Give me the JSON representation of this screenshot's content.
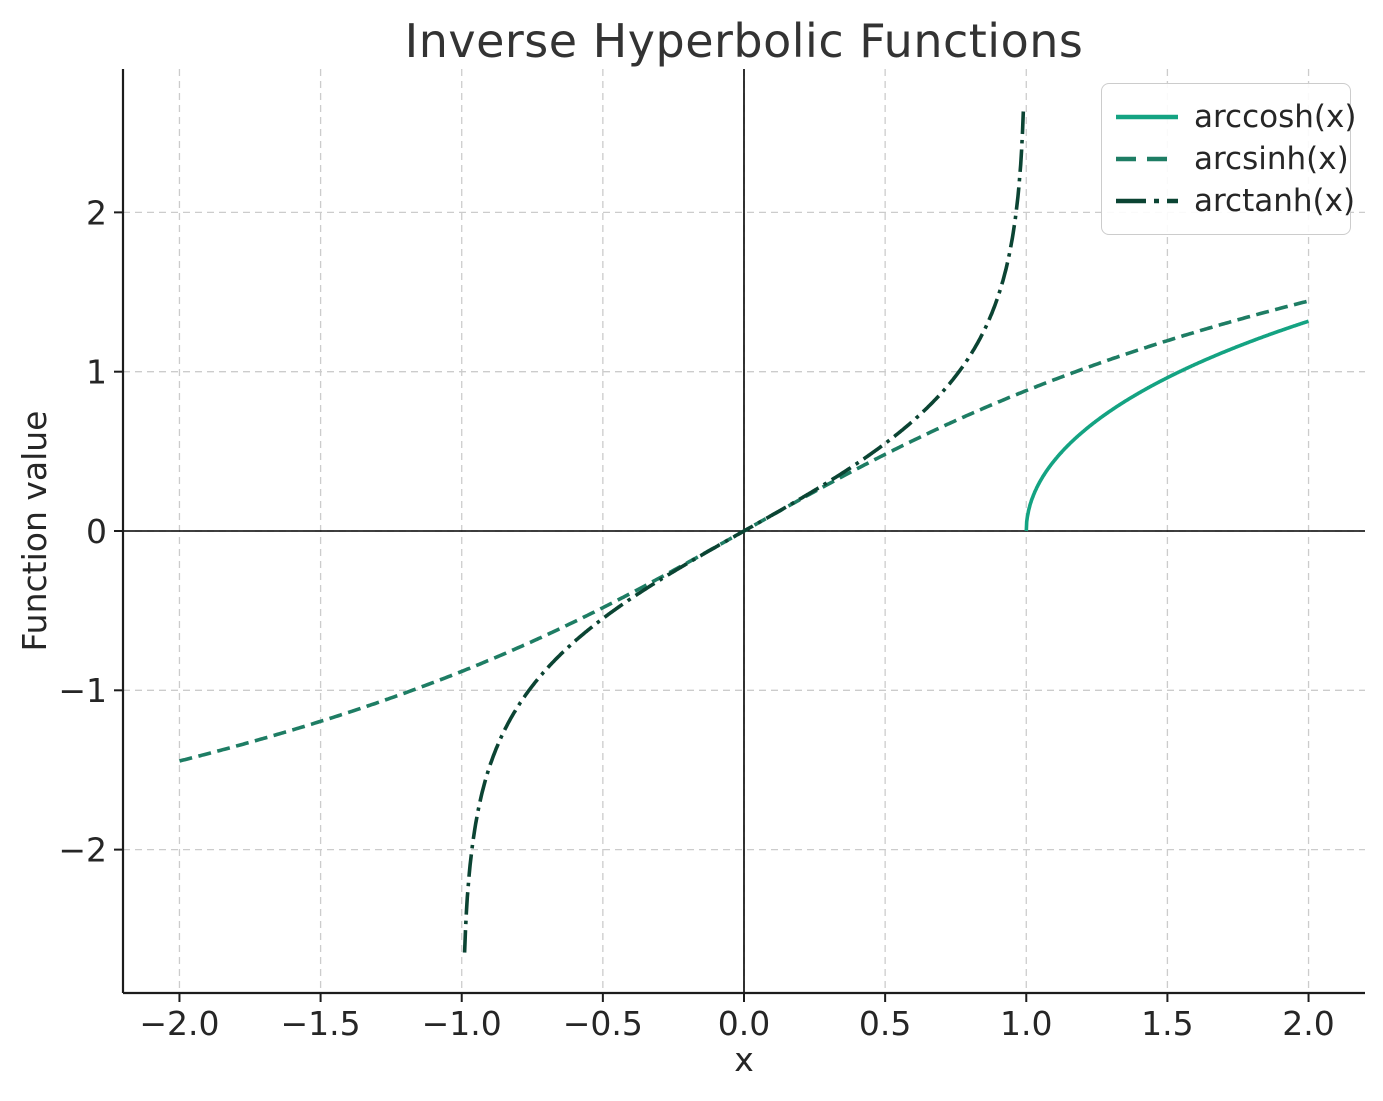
{
  "chart_data": {
    "type": "line",
    "title": "Inverse Hyperbolic Functions",
    "xlabel": "x",
    "ylabel": "Function value",
    "xlim": [
      -2.2,
      2.2
    ],
    "ylim": [
      -2.9,
      2.9
    ],
    "xticks": [
      -2.0,
      -1.5,
      -1.0,
      -0.5,
      0.0,
      0.5,
      1.0,
      1.5,
      2.0
    ],
    "xtick_labels": [
      "−2.0",
      "−1.5",
      "−1.0",
      "−0.5",
      "0.0",
      "0.5",
      "1.0",
      "1.5",
      "2.0"
    ],
    "yticks": [
      -2,
      -1,
      0,
      1,
      2
    ],
    "ytick_labels": [
      "−2",
      "−1",
      "0",
      "1",
      "2"
    ],
    "grid": true,
    "grid_style": "dashed",
    "grid_color": "#cccccc",
    "axis_color": "#1c1c1c",
    "zero_line_color": "#000000",
    "legend_position": "upper right",
    "reference_lines": {
      "axhline": 0,
      "axvline": 0
    },
    "series": [
      {
        "name": "arccosh(x)",
        "fn": "acosh",
        "style": "solid",
        "color": "#14a382",
        "domain": [
          1.0,
          2.0
        ],
        "samples": {
          "x": [
            1.0,
            1.1,
            1.2,
            1.3,
            1.4,
            1.5,
            1.6,
            1.7,
            1.8,
            1.9,
            2.0
          ],
          "y": [
            0.0,
            0.4436,
            0.6224,
            0.7564,
            0.867,
            0.9624,
            1.047,
            1.1232,
            1.1929,
            1.2571,
            1.317
          ]
        }
      },
      {
        "name": "arcsinh(x)",
        "fn": "asinh",
        "style": "dashed",
        "color": "#1e7d64",
        "domain": [
          -2.0,
          2.0
        ],
        "samples": {
          "x": [
            -2.0,
            -1.5,
            -1.0,
            -0.5,
            0.0,
            0.5,
            1.0,
            1.5,
            2.0
          ],
          "y": [
            -1.4436,
            -1.1948,
            -0.8814,
            -0.4812,
            0.0,
            0.4812,
            0.8814,
            1.1948,
            1.4436
          ]
        }
      },
      {
        "name": "arctanh(x)",
        "fn": "atanh",
        "style": "dashdot",
        "color": "#0b4433",
        "domain": [
          -0.99,
          0.99
        ],
        "samples": {
          "x": [
            -0.99,
            -0.9,
            -0.75,
            -0.5,
            -0.25,
            0.0,
            0.25,
            0.5,
            0.75,
            0.9,
            0.99
          ],
          "y": [
            -2.6467,
            -1.4722,
            -0.973,
            -0.5493,
            -0.2554,
            0.0,
            0.2554,
            0.5493,
            0.973,
            1.4722,
            2.6467
          ]
        }
      }
    ]
  }
}
